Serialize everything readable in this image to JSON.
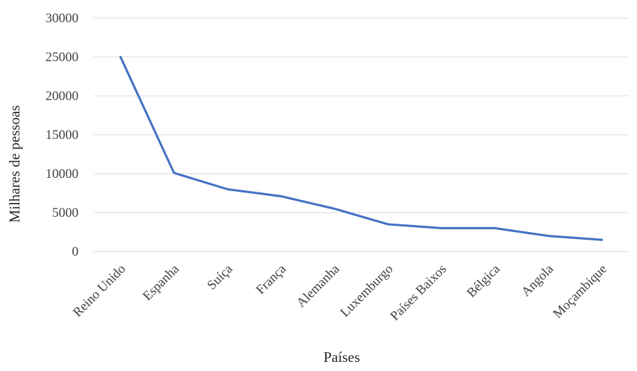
{
  "chart_data": {
    "type": "line",
    "title": "",
    "xlabel": "Países",
    "ylabel": "Milhares de pessoas",
    "categories": [
      "Reino Unido",
      "Espanha",
      "Suíça",
      "França",
      "Alemanha",
      "Luxemburgo",
      "Países Baixos",
      "Bélgica",
      "Angola",
      "Moçambique"
    ],
    "series": [
      {
        "values": [
          25000,
          10100,
          8000,
          7100,
          5500,
          3500,
          3000,
          3000,
          2000,
          1500
        ]
      }
    ],
    "ylim": [
      0,
      30000
    ],
    "yticks": [
      "0",
      "5000",
      "10000",
      "15000",
      "20000",
      "25000",
      "30000"
    ],
    "grid": true,
    "line_color": "#4472C4",
    "grid_color": "#D9D9D9"
  }
}
